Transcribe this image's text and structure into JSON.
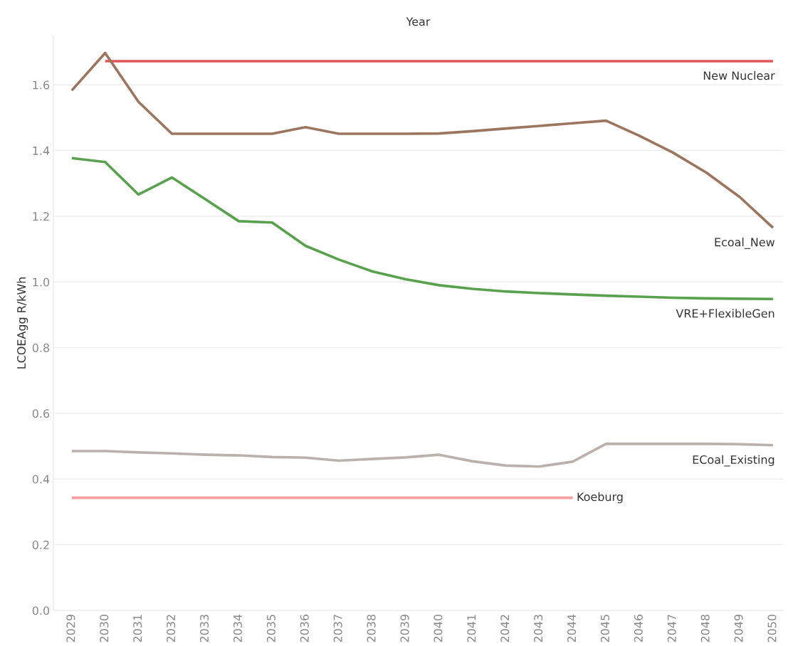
{
  "chart_data": {
    "type": "line",
    "xlabel": "Year",
    "ylabel": "LCOEAgg R/kWh",
    "categories": [
      "2029",
      "2030",
      "2031",
      "2032",
      "2033",
      "2034",
      "2035",
      "2036",
      "2037",
      "2038",
      "2039",
      "2040",
      "2041",
      "2042",
      "2043",
      "2044",
      "2045",
      "2046",
      "2047",
      "2048",
      "2049",
      "2050"
    ],
    "series": [
      {
        "name": "New Nuclear",
        "color": "#e15759",
        "values": [
          null,
          1.672,
          1.672,
          1.672,
          1.672,
          1.672,
          1.672,
          1.672,
          1.672,
          1.672,
          1.672,
          1.672,
          1.672,
          1.672,
          1.672,
          1.672,
          1.672,
          1.672,
          1.672,
          1.672,
          1.672,
          1.672
        ]
      },
      {
        "name": "Ecoal_New",
        "color": "#9c755f",
        "values": [
          1.583,
          1.697,
          1.548,
          1.451,
          1.451,
          1.451,
          1.451,
          1.471,
          1.451,
          1.451,
          1.451,
          1.452,
          1.459,
          1.467,
          1.475,
          1.483,
          1.491,
          1.445,
          1.394,
          1.333,
          1.259,
          1.165
        ]
      },
      {
        "name": "VRE+FlexibleGen",
        "color": "#59a14f",
        "values": [
          1.377,
          1.365,
          1.266,
          1.318,
          1.252,
          1.185,
          1.181,
          1.11,
          1.068,
          1.032,
          1.008,
          0.99,
          0.979,
          0.971,
          0.966,
          0.962,
          0.958,
          0.955,
          0.952,
          0.95,
          0.949,
          0.948
        ]
      },
      {
        "name": "ECoal_Existing",
        "color": "#bab0ac",
        "values": [
          0.485,
          0.485,
          0.481,
          0.478,
          0.474,
          0.472,
          0.467,
          0.465,
          0.456,
          0.461,
          0.466,
          0.474,
          0.454,
          0.441,
          0.438,
          0.453,
          0.507,
          0.507,
          0.507,
          0.507,
          0.506,
          0.503
        ]
      },
      {
        "name": "Koeburg",
        "color": "#ff9d9a",
        "values": [
          0.343,
          0.343,
          0.343,
          0.343,
          0.343,
          0.343,
          0.343,
          0.343,
          0.343,
          0.343,
          0.343,
          0.343,
          0.343,
          0.343,
          0.343,
          0.343,
          null,
          null,
          null,
          null,
          null,
          null
        ]
      }
    ],
    "ylim": [
      0,
      1.75
    ],
    "yticks": [
      {
        "value": 0,
        "label": "0.0"
      },
      0.2,
      0.4,
      0.6,
      0.8,
      {
        "value": 1,
        "label": "1.0"
      },
      1.2,
      1.4,
      1.6
    ],
    "grid": "y",
    "line_style": "solid"
  }
}
